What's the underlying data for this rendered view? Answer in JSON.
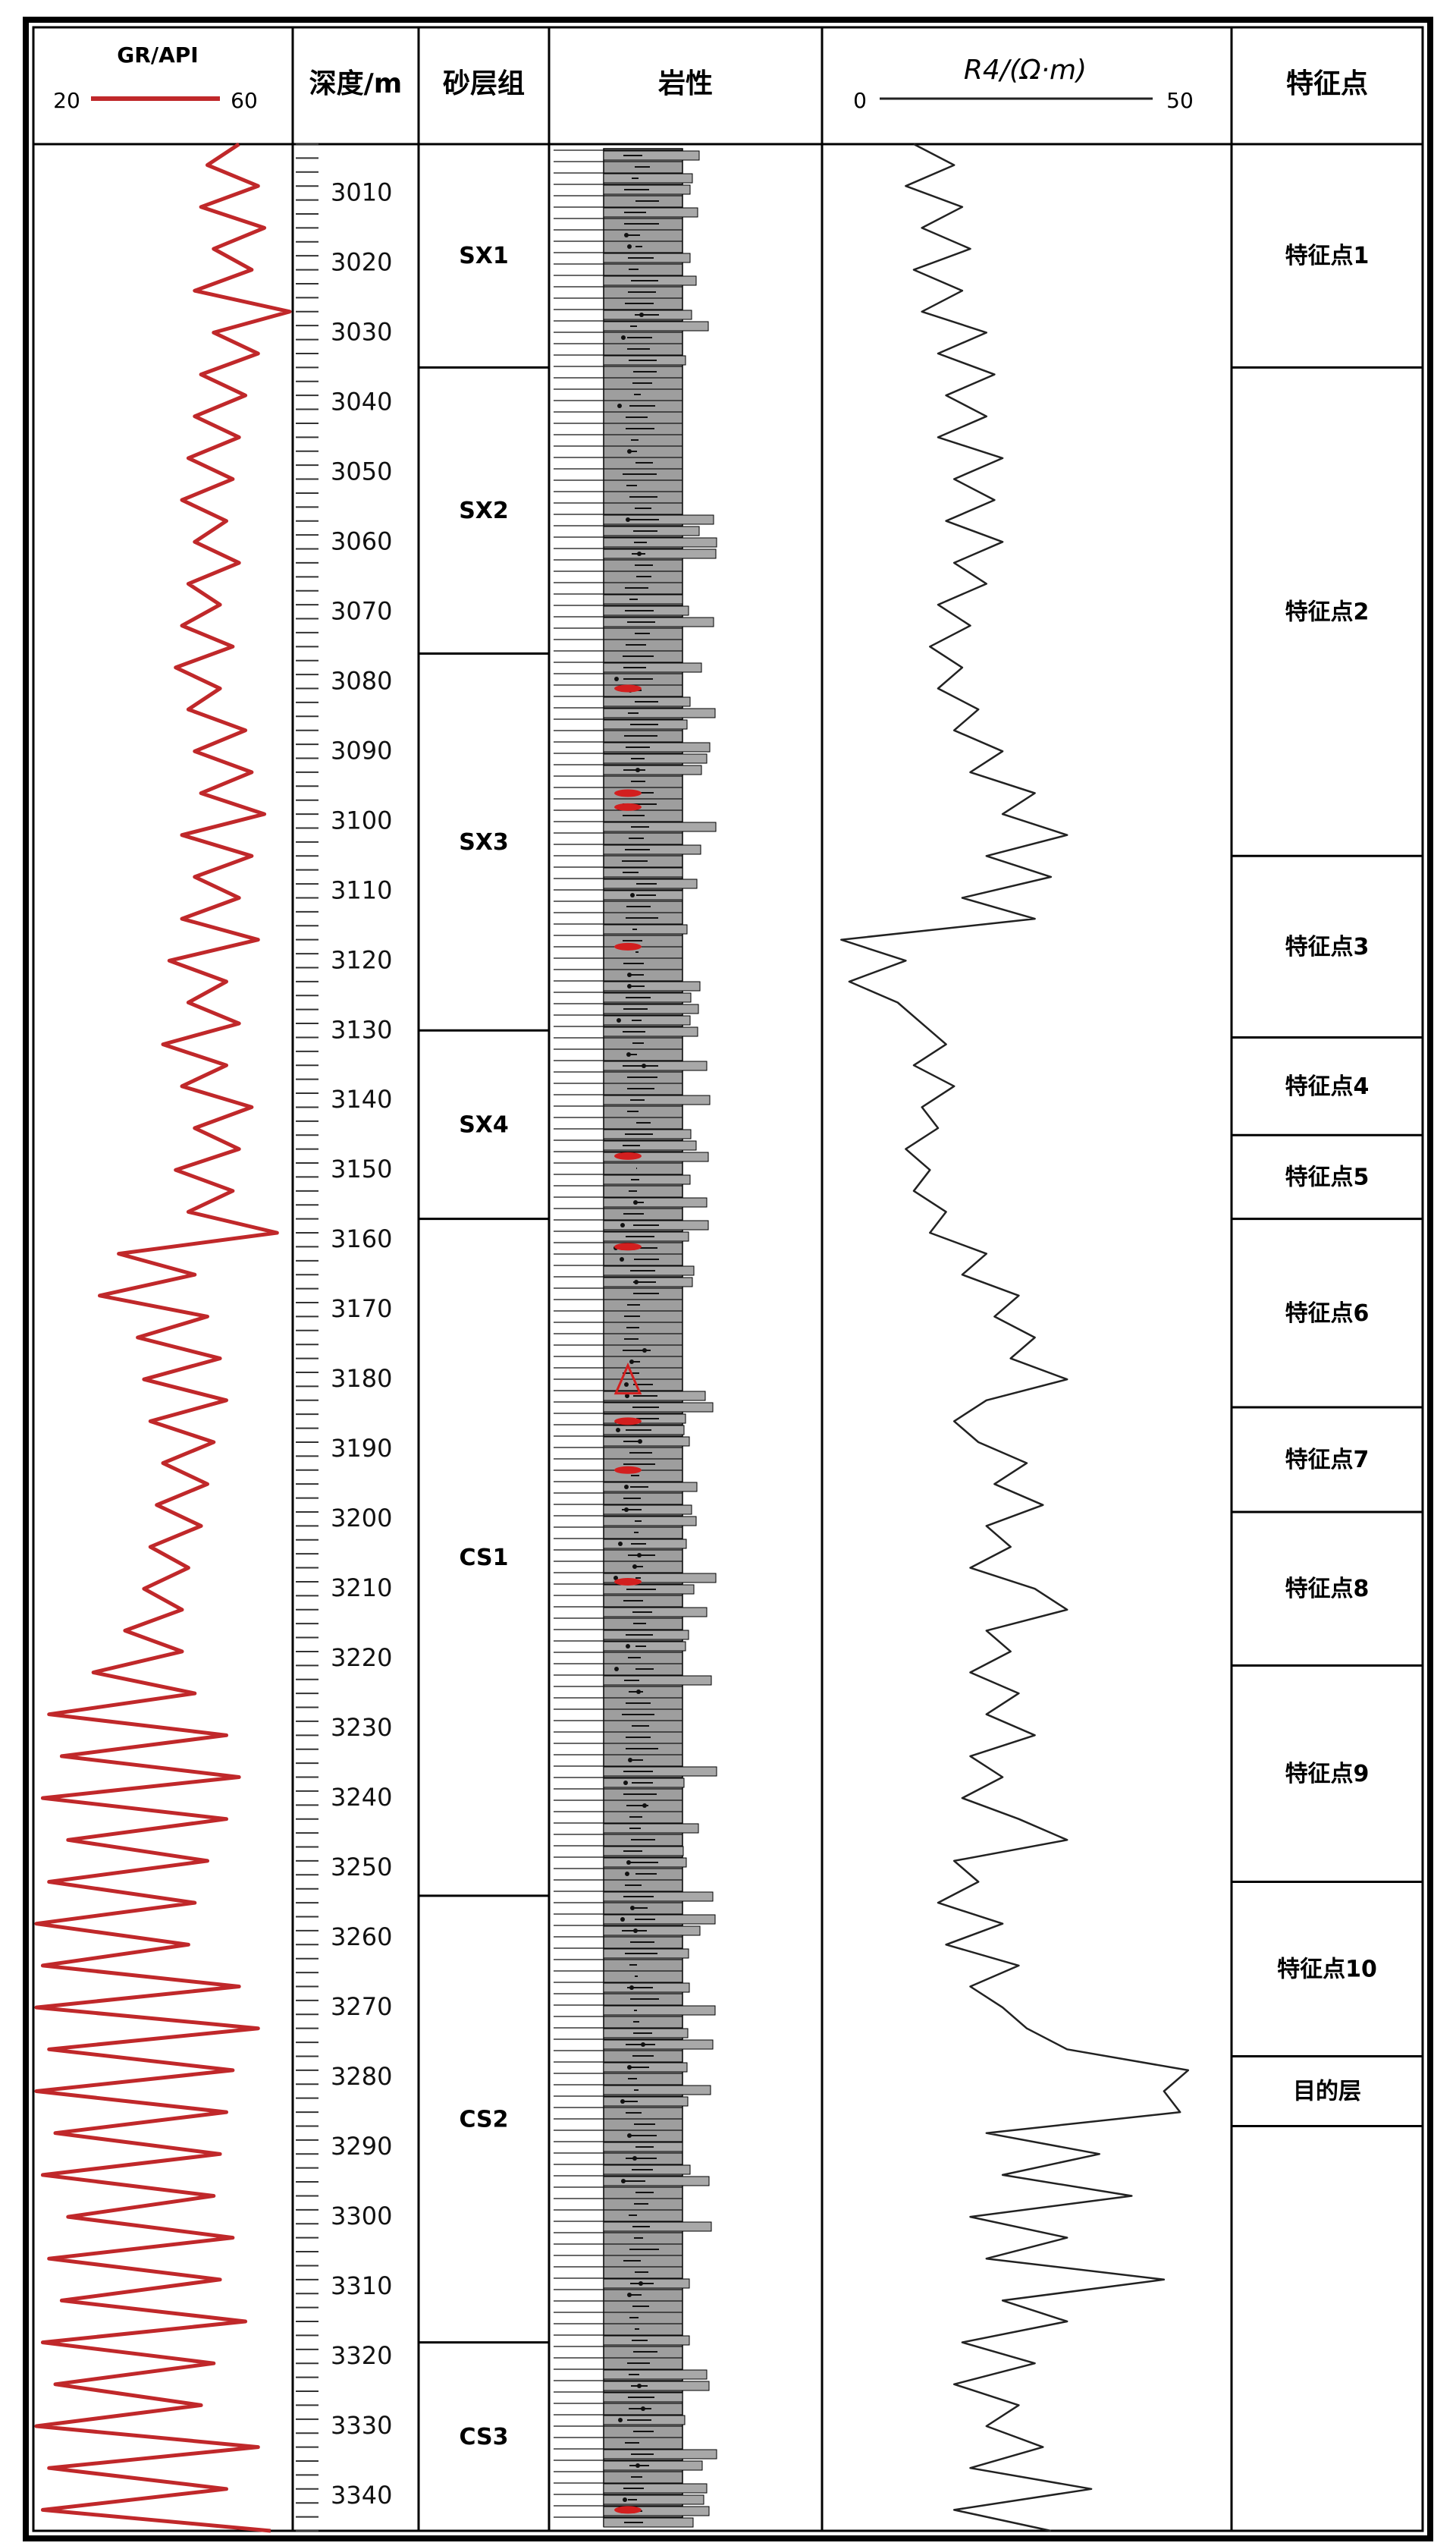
{
  "headers": {
    "gr_label": "GR/API",
    "gr_min": "20",
    "gr_max": "60",
    "depth_label": "深度/m",
    "sand_label": "砂层组",
    "litho_label": "岩性",
    "res_label": "R4/(Ω·m)",
    "res_min": "0",
    "res_max": "50",
    "feature_label": "特征点"
  },
  "depth_axis": {
    "start": 3003,
    "end": 3345,
    "major_step": 10,
    "labels": [
      3010,
      3020,
      3030,
      3040,
      3050,
      3060,
      3070,
      3080,
      3090,
      3100,
      3110,
      3120,
      3130,
      3140,
      3150,
      3160,
      3170,
      3180,
      3190,
      3200,
      3210,
      3220,
      3230,
      3240,
      3250,
      3260,
      3270,
      3280,
      3290,
      3300,
      3310,
      3320,
      3330,
      3340
    ]
  },
  "sand_groups": [
    {
      "name": "SX1",
      "top": 3003,
      "bottom": 3035
    },
    {
      "name": "SX2",
      "top": 3035,
      "bottom": 3076
    },
    {
      "name": "SX3",
      "top": 3076,
      "bottom": 3130
    },
    {
      "name": "SX4",
      "top": 3130,
      "bottom": 3157
    },
    {
      "name": "CS1",
      "top": 3157,
      "bottom": 3254
    },
    {
      "name": "CS2",
      "top": 3254,
      "bottom": 3318
    },
    {
      "name": "CS3",
      "top": 3318,
      "bottom": 3345
    }
  ],
  "feature_points": [
    {
      "name": "特征点1",
      "top": 3003,
      "bottom": 3035
    },
    {
      "name": "特征点2",
      "top": 3035,
      "bottom": 3105
    },
    {
      "name": "特征点3",
      "top": 3105,
      "bottom": 3131
    },
    {
      "name": "特征点4",
      "top": 3131,
      "bottom": 3145
    },
    {
      "name": "特征点5",
      "top": 3145,
      "bottom": 3157
    },
    {
      "name": "特征点6",
      "top": 3157,
      "bottom": 3184
    },
    {
      "name": "特征点7",
      "top": 3184,
      "bottom": 3199
    },
    {
      "name": "特征点8",
      "top": 3199,
      "bottom": 3221
    },
    {
      "name": "特征点9",
      "top": 3221,
      "bottom": 3252
    },
    {
      "name": "特征点10",
      "top": 3252,
      "bottom": 3277
    },
    {
      "name": "目的层",
      "top": 3277,
      "bottom": 3287
    }
  ],
  "chart_data": {
    "type": "line",
    "x_axis_depth": "深度/m",
    "series": [
      {
        "name": "GR/API",
        "range": [
          20,
          60
        ],
        "color": "#c0282a",
        "depth": [
          3003,
          3006,
          3009,
          3012,
          3015,
          3018,
          3021,
          3024,
          3027,
          3030,
          3033,
          3036,
          3039,
          3042,
          3045,
          3048,
          3051,
          3054,
          3057,
          3060,
          3063,
          3066,
          3069,
          3072,
          3075,
          3078,
          3081,
          3084,
          3087,
          3090,
          3093,
          3096,
          3099,
          3102,
          3105,
          3108,
          3111,
          3114,
          3117,
          3120,
          3123,
          3126,
          3129,
          3132,
          3135,
          3138,
          3141,
          3144,
          3147,
          3150,
          3153,
          3156,
          3159,
          3162,
          3165,
          3168,
          3171,
          3174,
          3177,
          3180,
          3183,
          3186,
          3189,
          3192,
          3195,
          3198,
          3201,
          3204,
          3207,
          3210,
          3213,
          3216,
          3219,
          3222,
          3225,
          3228,
          3231,
          3234,
          3237,
          3240,
          3243,
          3246,
          3249,
          3252,
          3255,
          3258,
          3261,
          3264,
          3267,
          3270,
          3273,
          3276,
          3279,
          3282,
          3285,
          3288,
          3291,
          3294,
          3297,
          3300,
          3303,
          3306,
          3309,
          3312,
          3315,
          3318,
          3321,
          3324,
          3327,
          3330,
          3333,
          3336,
          3339,
          3342,
          3345
        ],
        "values": [
          52,
          47,
          55,
          46,
          56,
          48,
          54,
          45,
          60,
          48,
          55,
          46,
          53,
          45,
          52,
          44,
          51,
          43,
          50,
          45,
          52,
          44,
          49,
          43,
          51,
          42,
          49,
          44,
          53,
          45,
          54,
          46,
          56,
          43,
          54,
          45,
          52,
          43,
          55,
          41,
          50,
          44,
          52,
          40,
          50,
          43,
          54,
          45,
          52,
          42,
          51,
          44,
          58,
          33,
          45,
          30,
          47,
          36,
          49,
          37,
          50,
          38,
          48,
          40,
          47,
          39,
          46,
          38,
          44,
          37,
          43,
          34,
          43,
          29,
          45,
          22,
          50,
          24,
          52,
          21,
          50,
          25,
          47,
          22,
          45,
          20,
          44,
          21,
          52,
          20,
          55,
          22,
          51,
          20,
          50,
          23,
          49,
          21,
          48,
          25,
          51,
          22,
          49,
          24,
          53,
          21,
          48,
          23,
          46,
          20,
          55,
          22,
          50,
          21,
          57
        ]
      },
      {
        "name": "R4/(Ω·m)",
        "range": [
          0,
          50
        ],
        "color": "#222222",
        "depth": [
          3003,
          3006,
          3009,
          3012,
          3015,
          3018,
          3021,
          3024,
          3027,
          3030,
          3033,
          3036,
          3039,
          3042,
          3045,
          3048,
          3051,
          3054,
          3057,
          3060,
          3063,
          3066,
          3069,
          3072,
          3075,
          3078,
          3081,
          3084,
          3087,
          3090,
          3093,
          3096,
          3099,
          3102,
          3105,
          3108,
          3111,
          3114,
          3117,
          3120,
          3123,
          3126,
          3129,
          3132,
          3135,
          3138,
          3141,
          3144,
          3147,
          3150,
          3153,
          3156,
          3159,
          3162,
          3165,
          3168,
          3171,
          3174,
          3177,
          3180,
          3183,
          3186,
          3189,
          3192,
          3195,
          3198,
          3201,
          3204,
          3207,
          3210,
          3213,
          3216,
          3219,
          3222,
          3225,
          3228,
          3231,
          3234,
          3237,
          3240,
          3243,
          3246,
          3249,
          3252,
          3255,
          3258,
          3261,
          3264,
          3267,
          3270,
          3273,
          3276,
          3279,
          3282,
          3285,
          3288,
          3291,
          3294,
          3297,
          3300,
          3303,
          3306,
          3309,
          3312,
          3315,
          3318,
          3321,
          3324,
          3327,
          3330,
          3333,
          3336,
          3339,
          3342,
          3345
        ],
        "values": [
          11,
          16,
          10,
          17,
          12,
          18,
          11,
          17,
          12,
          20,
          14,
          21,
          15,
          20,
          14,
          22,
          16,
          21,
          15,
          22,
          16,
          20,
          14,
          18,
          13,
          17,
          14,
          19,
          16,
          22,
          18,
          26,
          22,
          30,
          20,
          28,
          17,
          26,
          2,
          10,
          3,
          9,
          12,
          15,
          11,
          16,
          12,
          14,
          10,
          13,
          11,
          15,
          13,
          20,
          17,
          24,
          21,
          26,
          23,
          30,
          20,
          16,
          19,
          25,
          21,
          27,
          20,
          23,
          18,
          26,
          30,
          20,
          23,
          18,
          24,
          20,
          26,
          18,
          22,
          17,
          24,
          30,
          16,
          19,
          14,
          22,
          15,
          24,
          18,
          22,
          25,
          30,
          45,
          42,
          44,
          20,
          34,
          22,
          38,
          18,
          30,
          20,
          42,
          22,
          30,
          17,
          26,
          16,
          24,
          20,
          27,
          18,
          33,
          16,
          28
        ]
      }
    ]
  }
}
